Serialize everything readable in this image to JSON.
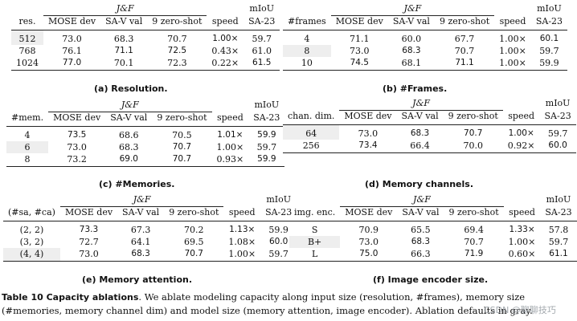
{
  "jf_label": "J&F",
  "miou_label": "mIoU",
  "tables": {
    "a": {
      "first_col": "res.",
      "cols": [
        "MOSE dev",
        "SA-V val",
        "9 zero-shot",
        "speed",
        "SA-23"
      ],
      "rows": [
        {
          "cells": [
            "512",
            "73.0",
            "68.3",
            "70.7",
            "1.00×",
            "59.7"
          ],
          "bold": [
            false,
            false,
            false,
            false,
            true,
            false
          ],
          "shade": true
        },
        {
          "cells": [
            "768",
            "76.1",
            "71.1",
            "72.5",
            "0.43×",
            "61.0"
          ],
          "bold": [
            false,
            false,
            true,
            true,
            false,
            false
          ],
          "shade": false
        },
        {
          "cells": [
            "1024",
            "77.0",
            "70.1",
            "72.3",
            "0.22×",
            "61.5"
          ],
          "bold": [
            false,
            true,
            false,
            false,
            false,
            true
          ],
          "shade": false
        }
      ],
      "caption": "(a) Resolution."
    },
    "b": {
      "first_col": "#frames",
      "cols": [
        "MOSE dev",
        "SA-V val",
        "9 zero-shot",
        "speed",
        "SA-23"
      ],
      "rows": [
        {
          "cells": [
            "4",
            "71.1",
            "60.0",
            "67.7",
            "1.00×",
            "60.1"
          ],
          "bold": [
            false,
            false,
            false,
            false,
            false,
            true
          ],
          "shade": false
        },
        {
          "cells": [
            "8",
            "73.0",
            "68.3",
            "70.7",
            "1.00×",
            "59.7"
          ],
          "bold": [
            false,
            false,
            true,
            false,
            false,
            false
          ],
          "shade": true
        },
        {
          "cells": [
            "10",
            "74.5",
            "68.1",
            "71.1",
            "1.00×",
            "59.9"
          ],
          "bold": [
            false,
            true,
            false,
            true,
            false,
            false
          ],
          "shade": false
        }
      ],
      "caption": "(b) #Frames."
    },
    "c": {
      "first_col": "#mem.",
      "cols": [
        "MOSE dev",
        "SA-V val",
        "9 zero-shot",
        "speed",
        "SA-23"
      ],
      "rows": [
        {
          "cells": [
            "4",
            "73.5",
            "68.6",
            "70.5",
            "1.01×",
            "59.9"
          ],
          "bold": [
            false,
            true,
            false,
            false,
            true,
            true
          ],
          "shade": false
        },
        {
          "cells": [
            "6",
            "73.0",
            "68.3",
            "70.7",
            "1.00×",
            "59.7"
          ],
          "bold": [
            false,
            false,
            false,
            true,
            false,
            false
          ],
          "shade": true
        },
        {
          "cells": [
            "8",
            "73.2",
            "69.0",
            "70.7",
            "0.93×",
            "59.9"
          ],
          "bold": [
            false,
            false,
            true,
            true,
            false,
            true
          ],
          "shade": false
        }
      ],
      "caption": "(c) #Memories."
    },
    "d": {
      "first_col": "chan. dim.",
      "cols": [
        "MOSE dev",
        "SA-V val",
        "9 zero-shot",
        "speed",
        "SA-23"
      ],
      "rows": [
        {
          "cells": [
            "64",
            "73.0",
            "68.3",
            "70.7",
            "1.00×",
            "59.7"
          ],
          "bold": [
            false,
            false,
            true,
            true,
            true,
            false
          ],
          "shade": true
        },
        {
          "cells": [
            "256",
            "73.4",
            "66.4",
            "70.0",
            "0.92×",
            "60.0"
          ],
          "bold": [
            false,
            true,
            false,
            false,
            false,
            true
          ],
          "shade": false
        }
      ],
      "caption": "(d) Memory channels."
    },
    "e": {
      "first_col": "(#sa, #ca)",
      "cols": [
        "MOSE dev",
        "SA-V val",
        "9 zero-shot",
        "speed",
        "SA-23"
      ],
      "rows": [
        {
          "cells": [
            "(2, 2)",
            "73.3",
            "67.3",
            "70.2",
            "1.13×",
            "59.9"
          ],
          "bold": [
            false,
            true,
            false,
            false,
            true,
            false
          ],
          "shade": false
        },
        {
          "cells": [
            "(3, 2)",
            "72.7",
            "64.1",
            "69.5",
            "1.08×",
            "60.0"
          ],
          "bold": [
            false,
            false,
            false,
            false,
            false,
            true
          ],
          "shade": false
        },
        {
          "cells": [
            "(4, 4)",
            "73.0",
            "68.3",
            "70.7",
            "1.00×",
            "59.7"
          ],
          "bold": [
            false,
            false,
            true,
            true,
            false,
            false
          ],
          "shade": true
        }
      ],
      "caption": "(e) Memory attention."
    },
    "f": {
      "first_col": "img. enc.",
      "cols": [
        "MOSE dev",
        "SA-V val",
        "9 zero-shot",
        "speed",
        "SA-23"
      ],
      "rows": [
        {
          "cells": [
            "S",
            "70.9",
            "65.5",
            "69.4",
            "1.33×",
            "57.8"
          ],
          "bold": [
            false,
            false,
            false,
            false,
            true,
            false
          ],
          "shade": false
        },
        {
          "cells": [
            "B+",
            "73.0",
            "68.3",
            "70.7",
            "1.00×",
            "59.7"
          ],
          "bold": [
            false,
            false,
            true,
            false,
            false,
            false
          ],
          "shade": true
        },
        {
          "cells": [
            "L",
            "75.0",
            "66.3",
            "71.9",
            "0.60×",
            "61.1"
          ],
          "bold": [
            false,
            true,
            false,
            true,
            false,
            true
          ],
          "shade": false
        }
      ],
      "caption": "(f) Image encoder size."
    }
  },
  "caption": {
    "lead": "Table 10  Capacity ablations",
    "text": ". We ablate modeling capacity along input size (resolution, #frames), memory size (#memories, memory channel dim) and model size (memory attention, image encoder). Ablation defaults in gray."
  },
  "watermark": "CSDN @聊聊技巧"
}
